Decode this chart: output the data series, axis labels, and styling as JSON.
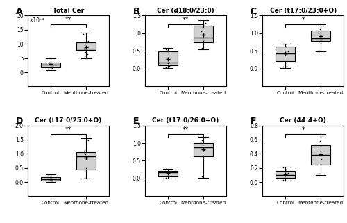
{
  "subplots": [
    {
      "label": "A",
      "title": "Total Cer",
      "scale_label": "×10⁻²",
      "ylim": [
        -5,
        20
      ],
      "yticks": [
        0,
        5,
        10,
        15,
        20
      ],
      "significance": "**",
      "control": {
        "whisker_low": 0.8,
        "q1": 1.8,
        "median": 2.8,
        "q3": 3.5,
        "whisker_high": 5.0,
        "mean": 2.9,
        "points": [
          1.0,
          1.5,
          1.8,
          2.0,
          2.5,
          2.8,
          3.0,
          3.2,
          3.5,
          4.8
        ]
      },
      "treated": {
        "whisker_low": 5.0,
        "q1": 7.5,
        "median": 7.8,
        "q3": 10.5,
        "whisker_high": 14.0,
        "mean": 8.8,
        "points": [
          5.5,
          6.5,
          7.2,
          7.8,
          8.5,
          9.0,
          9.5,
          10.0,
          11.0,
          13.5
        ]
      }
    },
    {
      "label": "B",
      "title": "Cer (d18:0/23:0)",
      "scale_label": null,
      "ylim": [
        -0.5,
        1.5
      ],
      "yticks": [
        0.0,
        0.5,
        1.0,
        1.5
      ],
      "significance": "**",
      "control": {
        "whisker_low": 0.02,
        "q1": 0.1,
        "median": 0.18,
        "q3": 0.48,
        "whisker_high": 0.58,
        "mean": 0.28,
        "points": [
          0.04,
          0.08,
          0.15,
          0.18,
          0.25,
          0.45,
          0.52,
          0.55
        ]
      },
      "treated": {
        "whisker_low": 0.55,
        "q1": 0.75,
        "median": 0.88,
        "q3": 1.22,
        "whisker_high": 1.38,
        "mean": 0.96,
        "points": [
          0.58,
          0.78,
          0.82,
          0.88,
          0.95,
          1.05,
          1.15,
          1.3
        ]
      }
    },
    {
      "label": "C",
      "title": "Cer (t17:0/23:0+O)",
      "scale_label": null,
      "ylim": [
        -0.5,
        1.5
      ],
      "yticks": [
        0.0,
        0.5,
        1.0,
        1.5
      ],
      "significance": "*",
      "control": {
        "whisker_low": 0.02,
        "q1": 0.22,
        "median": 0.44,
        "q3": 0.62,
        "whisker_high": 0.7,
        "mean": 0.43,
        "points": [
          0.05,
          0.08,
          0.15,
          0.42,
          0.48,
          0.62,
          0.68,
          0.7
        ]
      },
      "treated": {
        "whisker_low": 0.48,
        "q1": 0.78,
        "median": 0.86,
        "q3": 1.08,
        "whisker_high": 1.25,
        "mean": 0.92,
        "points": [
          0.5,
          0.72,
          0.82,
          0.86,
          0.92,
          1.0,
          1.12,
          1.22
        ]
      }
    },
    {
      "label": "D",
      "title": "Cer (t17:0/25:0+O)",
      "scale_label": null,
      "ylim": [
        -0.5,
        2.0
      ],
      "yticks": [
        0.0,
        0.5,
        1.0,
        1.5,
        2.0
      ],
      "significance": "**",
      "control": {
        "whisker_low": 0.0,
        "q1": 0.05,
        "median": 0.1,
        "q3": 0.17,
        "whisker_high": 0.27,
        "mean": 0.11,
        "points": [
          0.02,
          0.05,
          0.08,
          0.1,
          0.12,
          0.16,
          0.2,
          0.25
        ]
      },
      "treated": {
        "whisker_low": 0.12,
        "q1": 0.45,
        "median": 0.92,
        "q3": 1.05,
        "whisker_high": 1.55,
        "mean": 0.85,
        "points": [
          0.15,
          0.5,
          0.8,
          0.9,
          0.98,
          1.05,
          1.12,
          1.48
        ]
      }
    },
    {
      "label": "E",
      "title": "Cer (t17:0/26:0+O)",
      "scale_label": null,
      "ylim": [
        -0.5,
        1.5
      ],
      "yticks": [
        0.0,
        0.5,
        1.0,
        1.5
      ],
      "significance": "**",
      "control": {
        "whisker_low": 0.0,
        "q1": 0.05,
        "median": 0.17,
        "q3": 0.22,
        "whisker_high": 0.28,
        "mean": 0.16,
        "points": [
          0.02,
          0.08,
          0.14,
          0.17,
          0.2,
          0.22,
          0.25,
          0.27
        ]
      },
      "treated": {
        "whisker_low": 0.02,
        "q1": 0.62,
        "median": 0.88,
        "q3": 1.0,
        "whisker_high": 1.18,
        "mean": 0.82,
        "points": [
          0.05,
          0.65,
          0.8,
          0.88,
          0.95,
          1.0,
          1.08,
          1.15
        ]
      }
    },
    {
      "label": "F",
      "title": "Cer (44:4+O)",
      "scale_label": null,
      "ylim": [
        -0.2,
        0.8
      ],
      "yticks": [
        0.0,
        0.2,
        0.4,
        0.6,
        0.8
      ],
      "significance": "*",
      "control": {
        "whisker_low": 0.02,
        "q1": 0.06,
        "median": 0.1,
        "q3": 0.16,
        "whisker_high": 0.22,
        "mean": 0.11,
        "points": [
          0.03,
          0.06,
          0.09,
          0.11,
          0.13,
          0.16,
          0.19,
          0.21
        ]
      },
      "treated": {
        "whisker_low": 0.1,
        "q1": 0.25,
        "median": 0.38,
        "q3": 0.52,
        "whisker_high": 0.68,
        "mean": 0.39,
        "points": [
          0.12,
          0.26,
          0.32,
          0.38,
          0.44,
          0.52,
          0.58,
          0.65
        ]
      }
    }
  ],
  "box_color": "#d0d0d0",
  "box_edge_color": "#000000",
  "whisker_color": "#000000",
  "median_color": "#000000",
  "mean_color": "#000000",
  "point_color": "#000000",
  "sig_line_color": "#000000",
  "background_color": "#ffffff"
}
